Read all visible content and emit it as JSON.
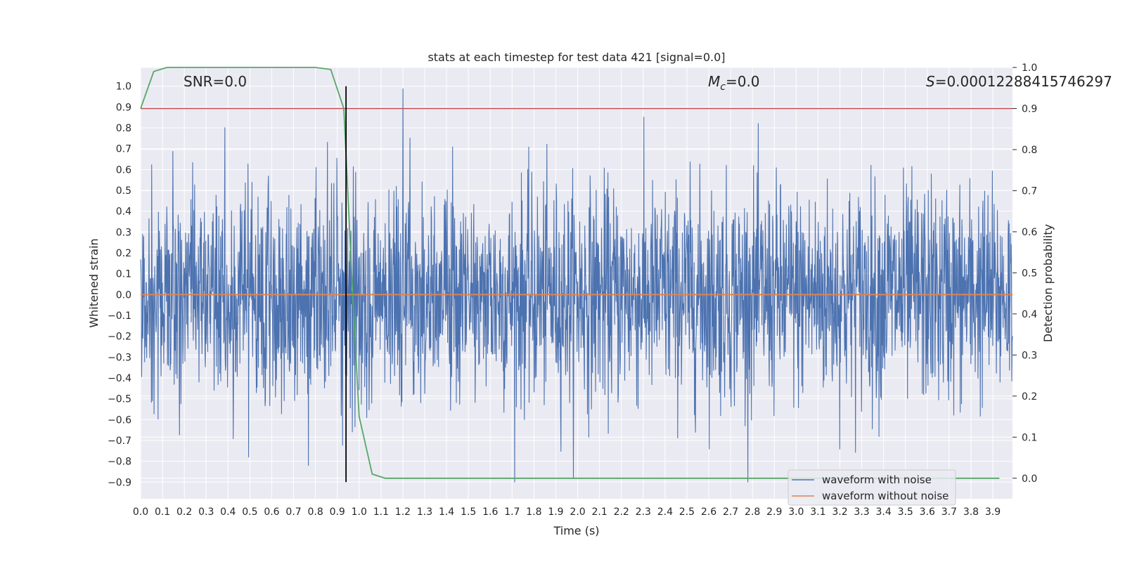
{
  "chart_data": {
    "type": "line",
    "title": "stats at each timestep for test data 421 [signal=0.0]",
    "xlabel": "Time (s)",
    "ylabel": "Whitened strain",
    "y2label": "Detection probability",
    "xlim": [
      0.0,
      3.99
    ],
    "ylim": [
      -0.98,
      1.09
    ],
    "y2lim": [
      -0.05,
      1.0
    ],
    "x_ticks": [
      "0.0",
      "0.1",
      "0.2",
      "0.3",
      "0.4",
      "0.5",
      "0.6",
      "0.7",
      "0.8",
      "0.9",
      "1.0",
      "1.1",
      "1.2",
      "1.3",
      "1.4",
      "1.5",
      "1.6",
      "1.7",
      "1.8",
      "1.9",
      "2.0",
      "2.1",
      "2.2",
      "2.3",
      "2.4",
      "2.5",
      "2.6",
      "2.7",
      "2.8",
      "2.9",
      "3.0",
      "3.1",
      "3.2",
      "3.3",
      "3.4",
      "3.5",
      "3.6",
      "3.7",
      "3.8",
      "3.9"
    ],
    "y_ticks": [
      "1.0",
      "0.9",
      "0.8",
      "0.7",
      "0.6",
      "0.5",
      "0.4",
      "0.3",
      "0.2",
      "0.1",
      "0.0",
      "−0.1",
      "−0.2",
      "−0.3",
      "−0.4",
      "−0.5",
      "−0.6",
      "−0.7",
      "−0.8",
      "−0.9"
    ],
    "y2_ticks": [
      "1.0",
      "0.9",
      "0.8",
      "0.7",
      "0.6",
      "0.5",
      "0.4",
      "0.3",
      "0.2",
      "0.1",
      "0.0"
    ],
    "annotations": {
      "snr": "SNR=0.0",
      "mc_symbol": "M",
      "mc_sub": "c",
      "mc_value": "=0.0",
      "s_symbol": "S",
      "s_value": "=0.00012288415746297"
    },
    "series": [
      {
        "name": "waveform with noise",
        "color": "#4c72b0",
        "axis": "left",
        "kind": "noise",
        "approx_range": [
          -0.9,
          1.0
        ],
        "sample_rate": 1024
      },
      {
        "name": "waveform without noise",
        "color": "#dd8452",
        "axis": "left",
        "x": [
          0.0,
          3.99
        ],
        "y": [
          0.0,
          0.0
        ]
      },
      {
        "name": "detection probability",
        "color": "#55a868",
        "axis": "right",
        "x": [
          0.0,
          0.06,
          0.12,
          0.2,
          0.3,
          0.4,
          0.5,
          0.6,
          0.7,
          0.8,
          0.87,
          0.93,
          0.97,
          1.0,
          1.06,
          1.12,
          1.2,
          1.5,
          2.0,
          2.5,
          3.0,
          3.5,
          3.93
        ],
        "y": [
          0.9,
          0.99,
          1.0,
          1.0,
          1.0,
          1.0,
          1.0,
          1.0,
          1.0,
          1.0,
          0.995,
          0.9,
          0.45,
          0.15,
          0.01,
          0.0,
          0.0,
          0.0,
          0.0,
          0.0,
          0.0,
          0.0,
          0.0
        ]
      }
    ],
    "threshold": {
      "axis": "right",
      "y": 0.9,
      "color": "#c44e52"
    },
    "marker_line": {
      "x": 0.94,
      "y_range": [
        -0.9,
        1.0
      ],
      "color": "#000000"
    },
    "legend": {
      "position": "bottom-right",
      "entries": [
        {
          "label": "waveform with noise",
          "color": "#4c72b0"
        },
        {
          "label": "waveform without noise",
          "color": "#dd8452"
        }
      ]
    },
    "grid": true
  }
}
